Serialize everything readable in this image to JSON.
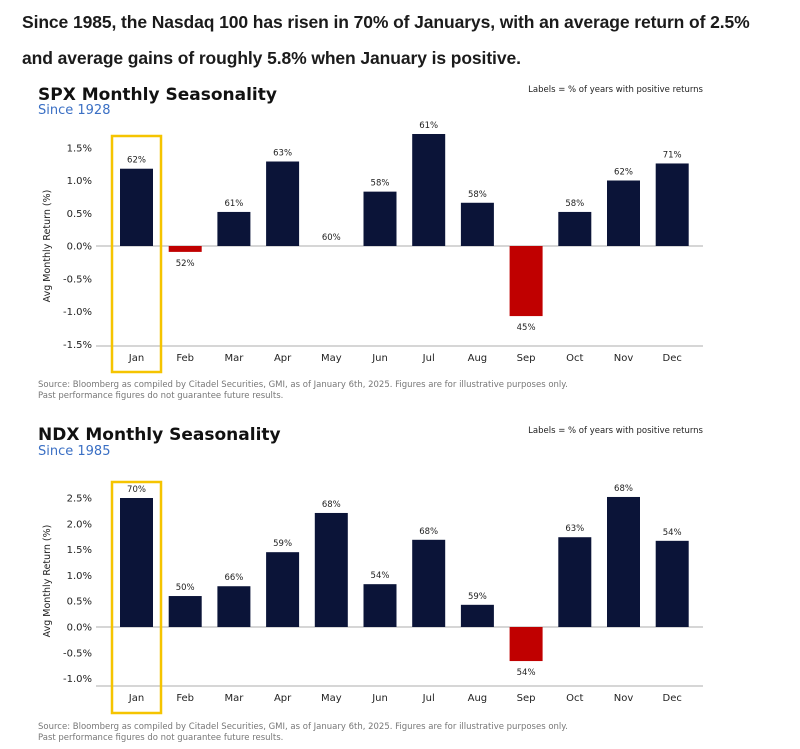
{
  "headline": {
    "line1": "Since 1985, the Nasdaq 100 has risen in 70% of Januarys, with an average return of 2.5%",
    "line2": "and average gains of roughly 5.8% when January is positive."
  },
  "colors": {
    "positive": "#0b1438",
    "negative": "#c00000",
    "highlight": "#f5c400",
    "subtitle": "#3a6fc4"
  },
  "chart_data": [
    {
      "type": "bar",
      "title": "SPX Monthly Seasonality",
      "subtitle": "Since 1928",
      "note": "Labels = % of years with positive returns",
      "ylabel": "Avg Monthly Return (%)",
      "xlabel": "",
      "ylim": [
        -1.5,
        1.75
      ],
      "yticks": [
        -1.5,
        -1.0,
        -0.5,
        0.0,
        0.5,
        1.0,
        1.5
      ],
      "ytick_labels": [
        "-1.5%",
        "-1.0%",
        "-0.5%",
        "0.0%",
        "0.5%",
        "1.0%",
        "1.5%"
      ],
      "categories": [
        "Jan",
        "Feb",
        "Mar",
        "Apr",
        "May",
        "Jun",
        "Jul",
        "Aug",
        "Sep",
        "Oct",
        "Nov",
        "Dec"
      ],
      "values": [
        1.18,
        -0.09,
        0.52,
        1.29,
        0.0,
        0.83,
        1.71,
        0.66,
        -1.07,
        0.52,
        1.0,
        1.26
      ],
      "data_labels": [
        "62%",
        "52%",
        "61%",
        "63%",
        "60%",
        "58%",
        "61%",
        "58%",
        "45%",
        "58%",
        "62%",
        "71%"
      ],
      "highlight_category": "Jan",
      "grid": false,
      "source": "Source: Bloomberg as compiled by Citadel Securities, GMI, as of January 6th, 2025. Figures are for illustrative purposes only.",
      "disclaimer": "Past performance figures do not guarantee future results."
    },
    {
      "type": "bar",
      "title": "NDX Monthly Seasonality",
      "subtitle": "Since 1985",
      "note": "Labels = % of years with positive returns",
      "ylabel": "Avg Monthly Return (%)",
      "xlabel": "",
      "ylim": [
        -1.2,
        2.8
      ],
      "yticks": [
        -1.0,
        -0.5,
        0.0,
        0.5,
        1.0,
        1.5,
        2.0,
        2.5
      ],
      "ytick_labels": [
        "-1.0%",
        "-0.5%",
        "0.0%",
        "0.5%",
        "1.0%",
        "1.5%",
        "2.0%",
        "2.5%"
      ],
      "categories": [
        "Jan",
        "Feb",
        "Mar",
        "Apr",
        "May",
        "Jun",
        "Jul",
        "Aug",
        "Sep",
        "Oct",
        "Nov",
        "Dec"
      ],
      "values": [
        2.5,
        0.6,
        0.79,
        1.45,
        2.21,
        0.83,
        1.69,
        0.43,
        -0.66,
        1.74,
        2.52,
        1.67
      ],
      "data_labels": [
        "70%",
        "50%",
        "66%",
        "59%",
        "68%",
        "54%",
        "68%",
        "59%",
        "54%",
        "63%",
        "68%",
        "54%"
      ],
      "highlight_category": "Jan",
      "grid": false,
      "source": "Source: Bloomberg as compiled by Citadel Securities, GMI, as of January 6th, 2025. Figures are for illustrative purposes only.",
      "disclaimer": "Past performance figures do not guarantee future results."
    }
  ]
}
